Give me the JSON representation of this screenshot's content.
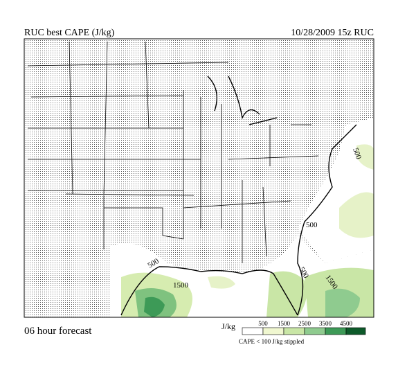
{
  "header": {
    "title": "RUC best CAPE (J/kg)",
    "valid": "10/28/2009  15z  RUC"
  },
  "map": {
    "contour_labels": [
      "500",
      "500",
      "500",
      "500",
      "1500",
      "1500"
    ]
  },
  "footer": {
    "forecast": "06 hour forecast",
    "legend": {
      "unit": "J/kg",
      "labels": [
        "500",
        "1500",
        "2500",
        "3500",
        "4500"
      ],
      "note": "CAPE < 100 J/kg stippled"
    }
  }
}
